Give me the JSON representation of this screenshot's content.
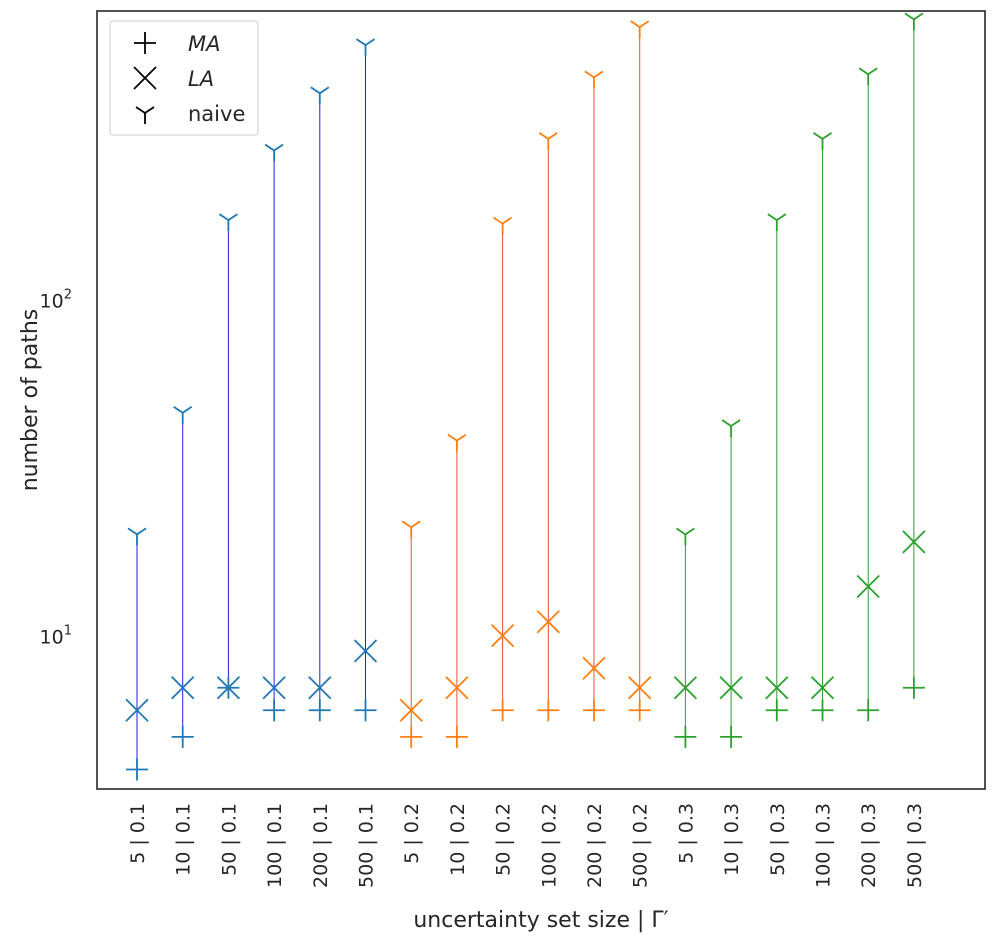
{
  "chart_data": {
    "type": "scatter",
    "title": "",
    "xlabel": "uncertainty set size | Γ′",
    "ylabel": "number of paths",
    "yscale": "log",
    "ylim": [
      3.5,
      720
    ],
    "y_ticks": [
      {
        "value": 10,
        "base": "10",
        "exp": "1"
      },
      {
        "value": 100,
        "base": "10",
        "exp": "2"
      }
    ],
    "grid": false,
    "legend_position": "top-left",
    "legend": [
      {
        "symbol": "plus",
        "label": "MA",
        "italic": true
      },
      {
        "symbol": "x",
        "label": "LA",
        "italic": true
      },
      {
        "symbol": "tri",
        "label": "naive",
        "italic": false
      }
    ],
    "categories": [
      "5 | 0.1",
      "10 | 0.1",
      "50 | 0.1",
      "100 | 0.1",
      "200 | 0.1",
      "500 | 0.1",
      "5 | 0.2",
      "10 | 0.2",
      "50 | 0.2",
      "100 | 0.2",
      "200 | 0.2",
      "500 | 0.2",
      "5 | 0.3",
      "10 | 0.3",
      "50 | 0.3",
      "100 | 0.3",
      "200 | 0.3",
      "500 | 0.3"
    ],
    "groups": [
      {
        "gamma": "0.1",
        "marker_color": "#1f77b4",
        "line_color": "#2222dd",
        "indices": [
          0,
          1,
          2,
          3,
          4,
          5
        ]
      },
      {
        "gamma": "0.2",
        "marker_color": "#ff7f0e",
        "line_color": "#e8503a",
        "indices": [
          6,
          7,
          8,
          9,
          10,
          11
        ]
      },
      {
        "gamma": "0.3",
        "marker_color": "#2ca02c",
        "line_color": "#2ca02c",
        "indices": [
          12,
          13,
          14,
          15,
          16,
          17
        ]
      }
    ],
    "series": [
      {
        "name": "MA",
        "marker": "plus",
        "values": [
          4,
          5,
          7,
          6,
          6,
          6,
          5,
          5,
          6,
          6,
          6,
          6,
          5,
          5,
          6,
          6,
          6,
          7
        ]
      },
      {
        "name": "LA",
        "marker": "x",
        "values": [
          6,
          7,
          7,
          7,
          7,
          9,
          6,
          7,
          10,
          11,
          8,
          7,
          7,
          7,
          7,
          7,
          14,
          19
        ]
      },
      {
        "name": "naive",
        "marker": "tri",
        "values": [
          20,
          46,
          172,
          277,
          410,
          570,
          21,
          38,
          168,
          300,
          457,
          645,
          20,
          42,
          172,
          300,
          467,
          680
        ]
      }
    ]
  }
}
